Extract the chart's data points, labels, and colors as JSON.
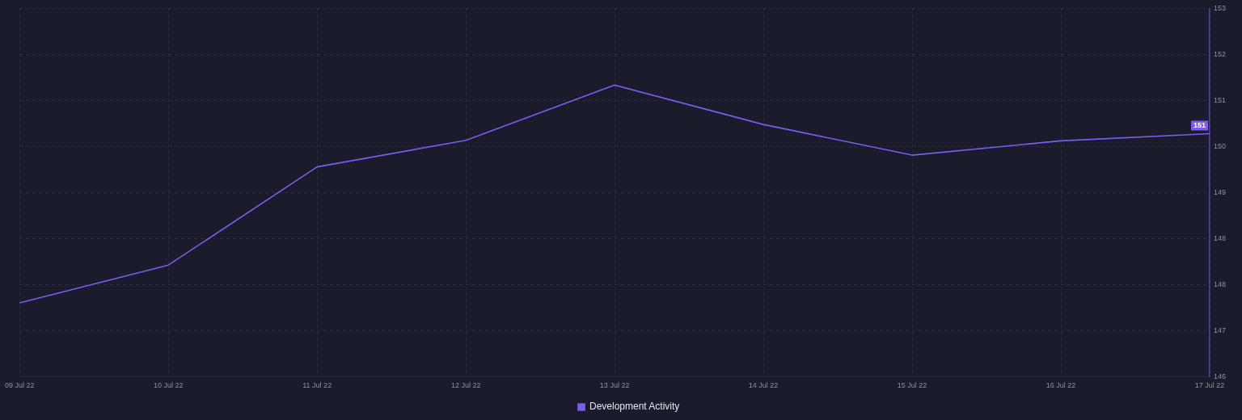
{
  "chart_data": {
    "type": "line",
    "categories": [
      "09 Jul 22",
      "10 Jul 22",
      "11 Jul 22",
      "12 Jul 22",
      "13 Jul 22",
      "14 Jul 22",
      "15 Jul 22",
      "16 Jul 22",
      "17 Jul 22"
    ],
    "series": [
      {
        "name": "Development Activity",
        "color": "#7b5cf0",
        "values": [
          147.21,
          147.95,
          149.87,
          150.39,
          151.47,
          150.7,
          150.1,
          150.38,
          150.52
        ],
        "value_labels": [
          null,
          null,
          null,
          null,
          null,
          null,
          null,
          null,
          "151"
        ]
      }
    ],
    "ylim": [
      145.77,
      152.97
    ],
    "yticks": [
      {
        "value": 145.77,
        "label": "146"
      },
      {
        "value": 146.67,
        "label": "147"
      },
      {
        "value": 147.57,
        "label": "148"
      },
      {
        "value": 148.47,
        "label": "148"
      },
      {
        "value": 149.37,
        "label": "149"
      },
      {
        "value": 150.27,
        "label": "150"
      },
      {
        "value": 151.17,
        "label": "151"
      },
      {
        "value": 152.07,
        "label": "152"
      },
      {
        "value": 152.97,
        "label": "153"
      }
    ],
    "grid": true,
    "legend": "bottom",
    "marker": "none"
  }
}
